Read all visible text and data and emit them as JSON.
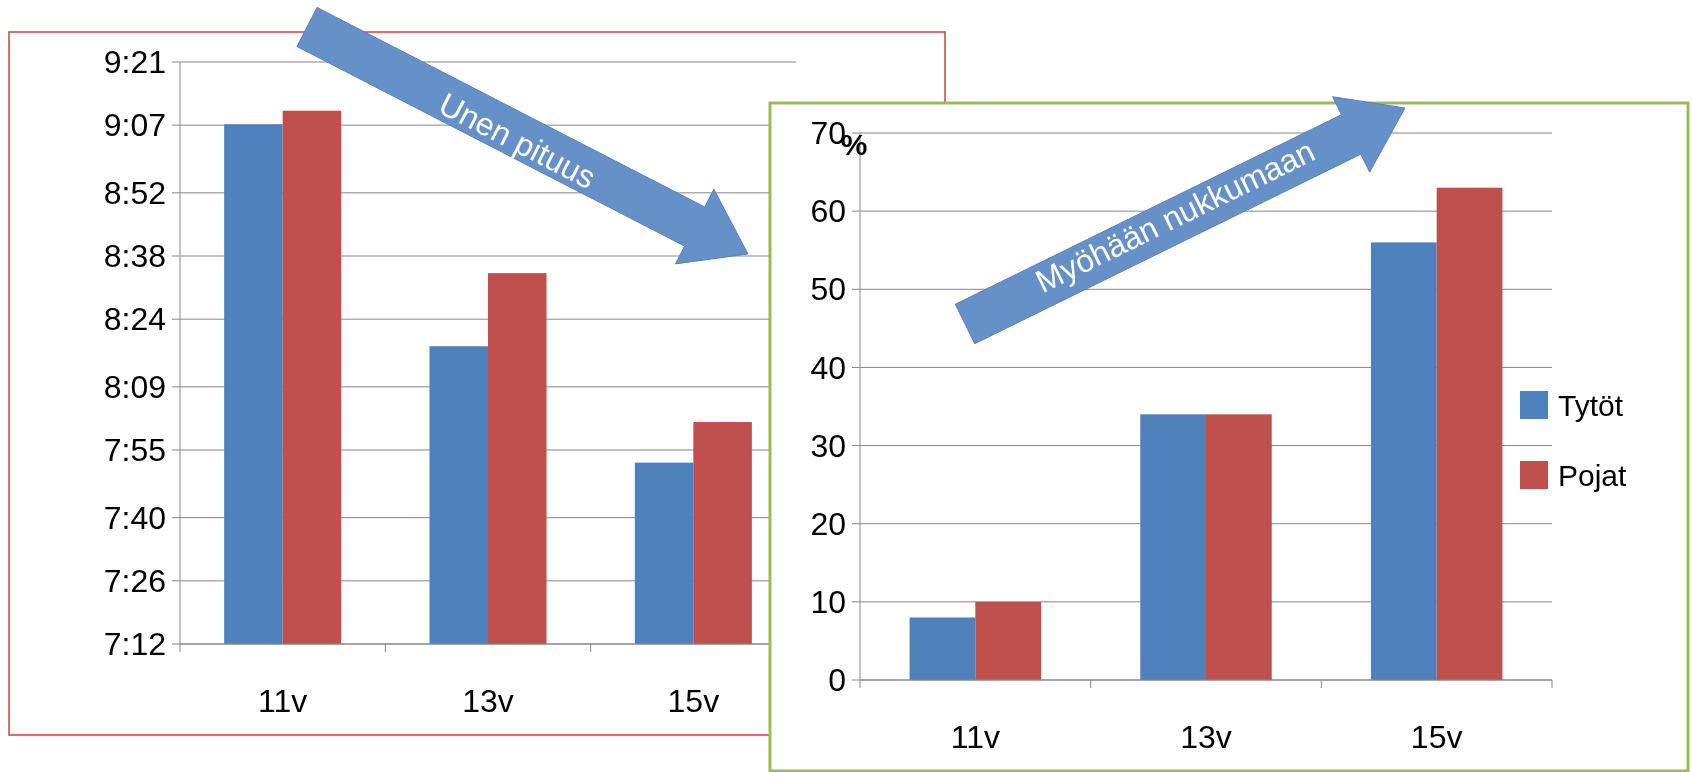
{
  "chart_data": [
    {
      "type": "bar",
      "categories": [
        "11v",
        "13v",
        "15v"
      ],
      "series": [
        {
          "color": "#4f81bd",
          "values": [
            9.12,
            8.3,
            7.87
          ]
        },
        {
          "color": "#c0504d",
          "values": [
            9.17,
            8.57,
            8.02
          ]
        }
      ],
      "ylim": [
        7.2,
        9.35
      ],
      "yticks": [
        {
          "value": 7.2,
          "label": "7:12"
        },
        {
          "value": 7.4333,
          "label": "7:26"
        },
        {
          "value": 7.6667,
          "label": "7:40"
        },
        {
          "value": 7.9167,
          "label": "7:55"
        },
        {
          "value": 8.15,
          "label": "8:09"
        },
        {
          "value": 8.4,
          "label": "8:24"
        },
        {
          "value": 8.6333,
          "label": "8:38"
        },
        {
          "value": 8.8667,
          "label": "8:52"
        },
        {
          "value": 9.1167,
          "label": "9:07"
        },
        {
          "value": 9.35,
          "label": "9:21"
        }
      ],
      "grid": "y",
      "legend": false,
      "annotations": [
        "Unen pituus"
      ]
    },
    {
      "type": "bar",
      "categories": [
        "11v",
        "13v",
        "15v"
      ],
      "series": [
        {
          "name": "Tytöt",
          "color": "#4f81bd",
          "values": [
            8,
            34,
            56
          ]
        },
        {
          "name": "Pojat",
          "color": "#c0504d",
          "values": [
            10,
            34,
            63
          ]
        }
      ],
      "ylabel": "%",
      "ylim": [
        0,
        70
      ],
      "yticks": [
        0,
        10,
        20,
        30,
        40,
        50,
        60,
        70
      ],
      "grid": "y",
      "legend": "right",
      "annotations": [
        "Myöhään nukkumaan"
      ]
    }
  ]
}
